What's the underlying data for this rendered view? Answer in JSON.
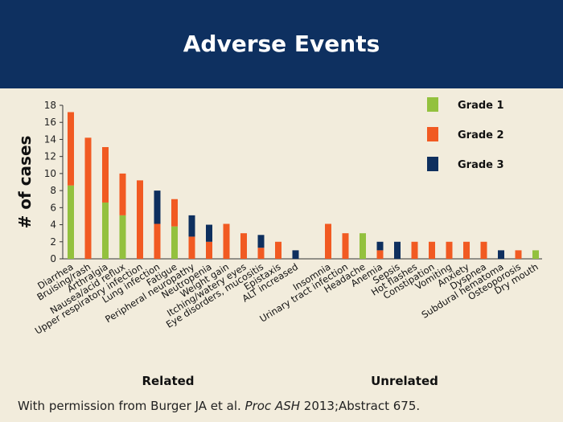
{
  "slide": {
    "title": "Adverse Events"
  },
  "footer": {
    "prefix": "With permission from Burger JA et al. ",
    "journal": "Proc ASH",
    "suffix": " 2013;Abstract 675."
  },
  "colors": {
    "grade1": "#93c13e",
    "grade2": "#f15a22",
    "grade3": "#0e2f5e"
  },
  "chart_data": {
    "type": "bar",
    "stacked": true,
    "ylabel": "# of cases",
    "ylim": [
      0,
      18
    ],
    "yticks": [
      0,
      2,
      4,
      6,
      8,
      10,
      12,
      14,
      16,
      18
    ],
    "grid": false,
    "legend_position": "top-right",
    "groups": [
      {
        "label": "Related",
        "categories": [
          "Diarrhea",
          "Bruising/rash",
          "Arthralgia",
          "Nausea/acid reflux",
          "Upper respiratory infection",
          "Lung infection",
          "Fatigue",
          "Peripheral neuropathy",
          "Neutropenia",
          "Weight gain",
          "Itching/watery eyes",
          "Eye disorders, mucositis",
          "Epistaxis",
          "ALT increased"
        ]
      },
      {
        "label": "Unrelated",
        "categories": [
          "Insomnia",
          "Urinary tract infection",
          "Headache",
          "Anemia",
          "Sepsis",
          "Hot flashes",
          "Constipation",
          "Vomiting",
          "Anxiety",
          "Dyspnea",
          "Subdural hematoma",
          "Osteoporosis",
          "Dry mouth"
        ]
      }
    ],
    "categories": [
      "Diarrhea",
      "Bruising/rash",
      "Arthralgia",
      "Nausea/acid reflux",
      "Upper respiratory infection",
      "Lung infection",
      "Fatigue",
      "Peripheral neuropathy",
      "Neutropenia",
      "Weight gain",
      "Itching/watery eyes",
      "Eye disorders, mucositis",
      "Epistaxis",
      "ALT increased",
      "Insomnia",
      "Urinary tract infection",
      "Headache",
      "Anemia",
      "Sepsis",
      "Hot flashes",
      "Constipation",
      "Vomiting",
      "Anxiety",
      "Dyspnea",
      "Subdural hematoma",
      "Osteoporosis",
      "Dry mouth"
    ],
    "series": [
      {
        "name": "Grade 1",
        "values": [
          8.6,
          0,
          6.6,
          5.1,
          0,
          0,
          3.8,
          0,
          0,
          0,
          0,
          0,
          0,
          0,
          0,
          0,
          3,
          0,
          0,
          0,
          0,
          0,
          0,
          0,
          0,
          0,
          1
        ]
      },
      {
        "name": "Grade 2",
        "values": [
          8.6,
          14.2,
          6.5,
          4.9,
          9.2,
          4.1,
          3.2,
          2.6,
          2,
          4.1,
          3,
          1.3,
          2,
          0,
          4.1,
          3,
          0,
          1,
          0,
          2,
          2,
          2,
          2,
          2,
          0,
          1,
          0
        ]
      },
      {
        "name": "Grade 3",
        "values": [
          0,
          0,
          0,
          0,
          0,
          3.9,
          0,
          2.5,
          2,
          0,
          0,
          1.5,
          0,
          1,
          0,
          0,
          0,
          1,
          2,
          0,
          0,
          0,
          0,
          0,
          1,
          0,
          0
        ]
      }
    ]
  }
}
